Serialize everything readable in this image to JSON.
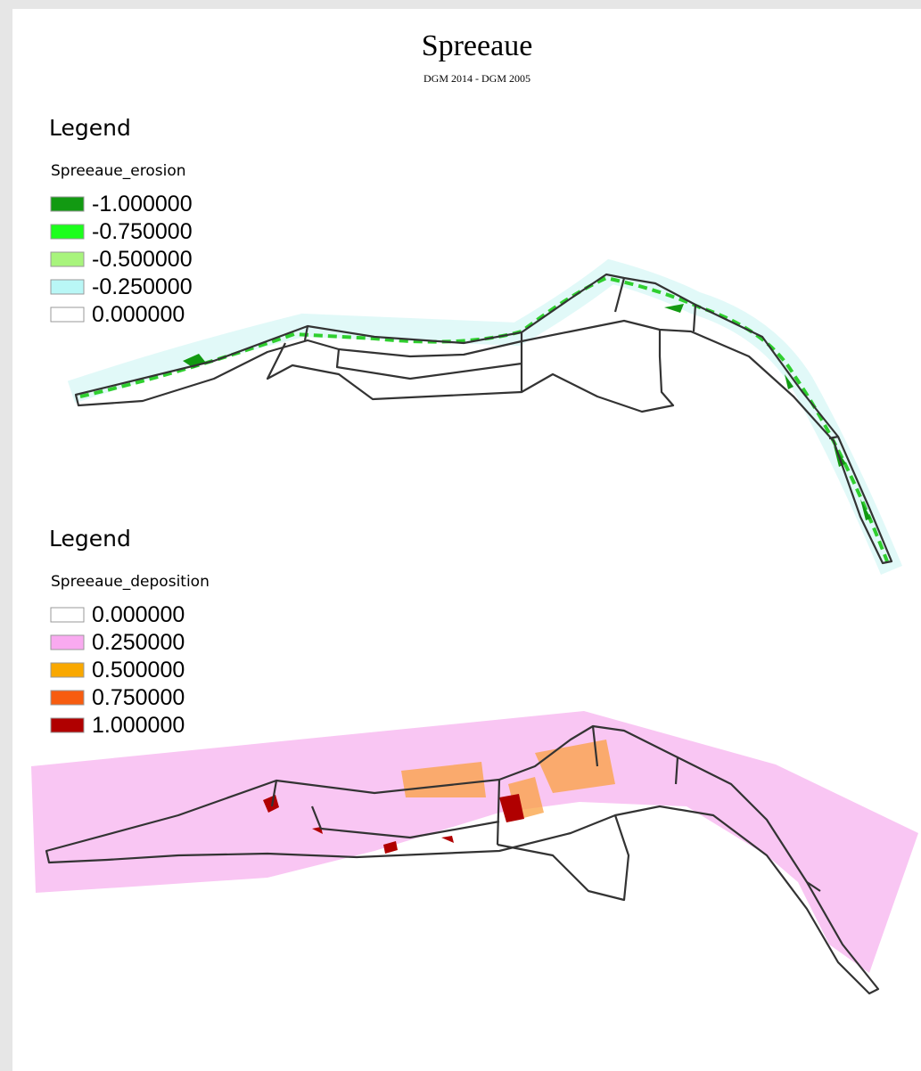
{
  "header": {
    "title": "Spreeaue",
    "subtitle": "DGM 2014 - DGM 2005"
  },
  "legends": [
    {
      "heading": "Legend",
      "layer": "Spreeaue_erosion",
      "items": [
        {
          "label": "-1.000000",
          "color": "#129a12"
        },
        {
          "label": "-0.750000",
          "color": "#1cff1c"
        },
        {
          "label": "-0.500000",
          "color": "#a8f47c"
        },
        {
          "label": "-0.250000",
          "color": "#b9f7f6"
        },
        {
          "label": "0.000000",
          "color": "#ffffff"
        }
      ]
    },
    {
      "heading": "Legend",
      "layer": "Spreeaue_deposition",
      "items": [
        {
          "label": "0.000000",
          "color": "#ffffff"
        },
        {
          "label": "0.250000",
          "color": "#f9aaf0"
        },
        {
          "label": "0.500000",
          "color": "#f9a800"
        },
        {
          "label": "0.750000",
          "color": "#f75c10"
        },
        {
          "label": "1.000000",
          "color": "#b00000"
        }
      ]
    }
  ]
}
